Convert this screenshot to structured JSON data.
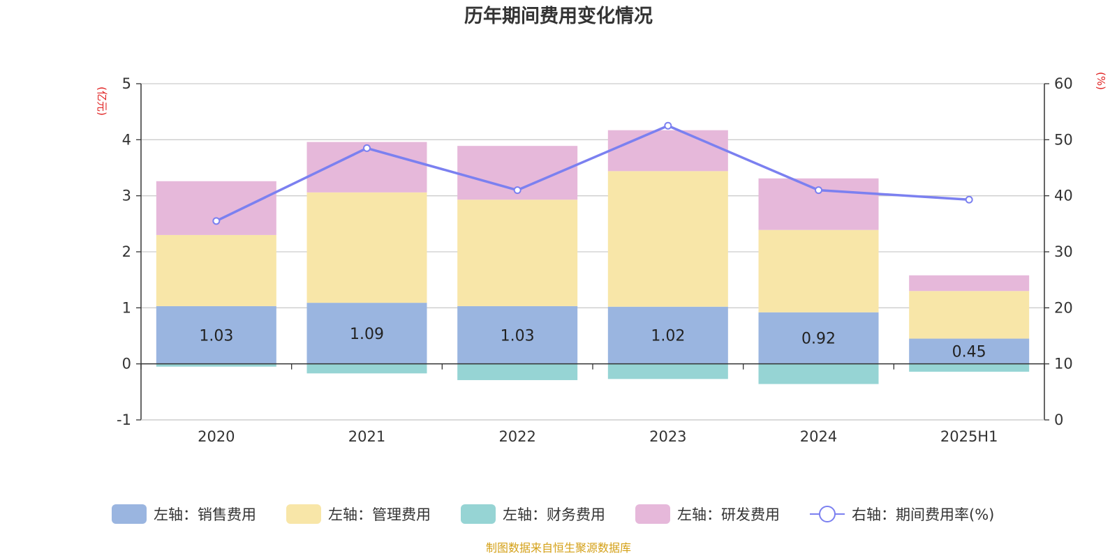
{
  "chart_data": {
    "type": "bar",
    "title": "历年期间费用变化情况",
    "categories": [
      "2020",
      "2021",
      "2022",
      "2023",
      "2024",
      "2025H1"
    ],
    "left_axis": {
      "unit": "(亿元)",
      "ylim": [
        -1,
        5
      ],
      "ticks": [
        "-1",
        "0",
        "1",
        "2",
        "3",
        "4",
        "5"
      ]
    },
    "right_axis": {
      "unit": "(%)",
      "ylim": [
        0,
        60
      ],
      "ticks": [
        "0",
        "10",
        "20",
        "30",
        "40",
        "50",
        "60"
      ]
    },
    "grid": true,
    "legend_position": "bottom",
    "series": [
      {
        "name": "左轴：销售费用",
        "type": "bar",
        "axis": "left",
        "color": "#9ab5e0",
        "values": [
          1.03,
          1.09,
          1.03,
          1.02,
          0.92,
          0.45
        ],
        "labels": [
          "1.03",
          "1.09",
          "1.03",
          "1.02",
          "0.92",
          "0.45"
        ]
      },
      {
        "name": "左轴：管理费用",
        "type": "bar",
        "axis": "left",
        "color": "#f8e6a8",
        "values": [
          1.27,
          1.97,
          1.9,
          2.42,
          1.47,
          0.85
        ]
      },
      {
        "name": "左轴：财务费用",
        "type": "bar",
        "axis": "left",
        "color": "#96d4d4",
        "values": [
          -0.05,
          -0.17,
          -0.29,
          -0.27,
          -0.36,
          -0.14
        ]
      },
      {
        "name": "左轴：研发费用",
        "type": "bar",
        "axis": "left",
        "color": "#e6b8da",
        "values": [
          0.96,
          0.9,
          0.96,
          0.73,
          0.92,
          0.28
        ]
      },
      {
        "name": "右轴：期间费用率(%)",
        "type": "line",
        "axis": "right",
        "color": "#7b80f0",
        "values": [
          35.5,
          48.5,
          41.0,
          52.5,
          41.0,
          39.3
        ]
      }
    ],
    "source": "制图数据来自恒生聚源数据库"
  }
}
